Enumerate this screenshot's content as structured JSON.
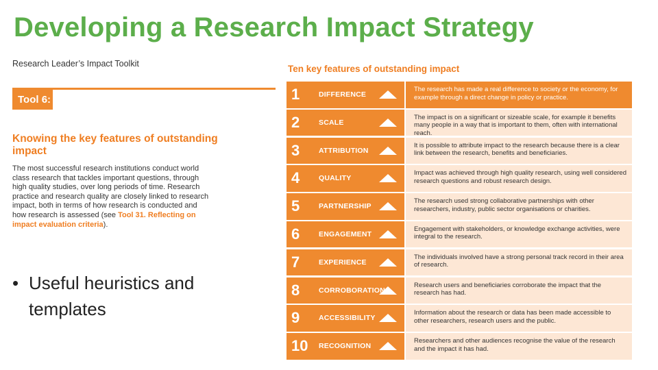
{
  "slide": {
    "title": "Developing a Research Impact Strategy"
  },
  "toolkit": {
    "name": "Research Leader’s Impact Toolkit",
    "tool_label": "Tool 6:",
    "heading": "Knowing the key features of outstanding impact",
    "body_text": "The most successful research institutions conduct world class research that tackles important questions, through high quality studies, over long periods of time. Research practice and research quality are closely linked to research impact, both in terms of how research is conducted and how research is assessed (see ",
    "link_text": "Tool 31. Reflecting on impact evaluation criteria",
    "body_end": ")."
  },
  "bullet": {
    "symbol": "•",
    "text": "Useful heuristics and templates"
  },
  "features": {
    "heading": "Ten key features of outstanding impact",
    "arrow_icon": "up-triangle-icon",
    "accent_color": "#ef8a2f",
    "desc_bg_color": "#fde7d5",
    "rows": [
      {
        "number": "1",
        "label": "DIFFERENCE",
        "description": "The research has made a real difference to society or the economy, for example through a direct change in policy or practice."
      },
      {
        "number": "2",
        "label": "SCALE",
        "description": "The impact is on a significant or sizeable scale, for example it benefits many people in a way that is important to them, often with international reach."
      },
      {
        "number": "3",
        "label": "ATTRIBUTION",
        "description": "It is possible to attribute impact to the research because there is a clear link between the research, benefits and beneficiaries."
      },
      {
        "number": "4",
        "label": "QUALITY",
        "description": "Impact was achieved through high quality research, using well considered research questions and robust research design."
      },
      {
        "number": "5",
        "label": "PARTNERSHIP",
        "description": "The research used strong collaborative partnerships with other researchers, industry, public sector organisations or charities."
      },
      {
        "number": "6",
        "label": "ENGAGEMENT",
        "description": "Engagement with stakeholders, or knowledge exchange activities, were integral to the research."
      },
      {
        "number": "7",
        "label": "EXPERIENCE",
        "description": "The individuals involved have a strong personal track record in their area of research."
      },
      {
        "number": "8",
        "label": "CORROBORATION",
        "description": "Research users and beneficiaries corroborate the impact that the research has had."
      },
      {
        "number": "9",
        "label": "ACCESSIBILITY",
        "description": "Information about the research or data has been made accessible to other researchers, research users and the public."
      },
      {
        "number": "10",
        "label": "RECOGNITION",
        "description": "Researchers and other audiences recognise the value of the research and the impact it has had."
      }
    ]
  }
}
